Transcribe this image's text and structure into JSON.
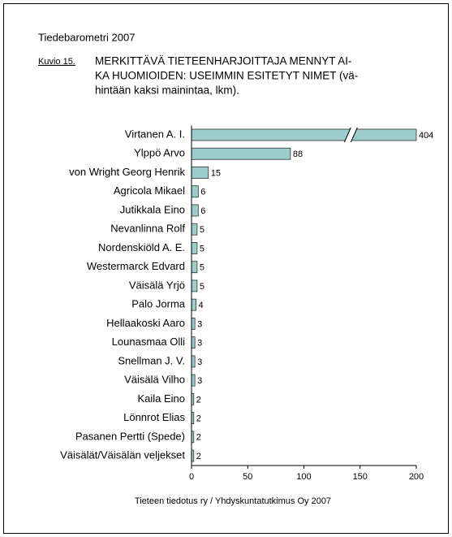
{
  "header": "Tiedebarometri 2007",
  "figure_label": "Kuvio 15.",
  "chart_data": {
    "type": "bar",
    "orientation": "horizontal",
    "title": [
      "MERKITTÄVÄ TIETEENHARJOITTAJA MENNYT AI-",
      "KA HUOMIOIDEN: USEIMMIN ESITETYT NIMET (vä-",
      "hintään kaksi mainintaa, lkm)."
    ],
    "categories": [
      "Virtanen A. I.",
      "Ylppö Arvo",
      "von Wright Georg Henrik",
      "Agricola Mikael",
      "Jutikkala Eino",
      "Nevanlinna Rolf",
      "Nordenskiöld A. E.",
      "Westermarck Edvard",
      "Väisälä Yrjö",
      "Palo Jorma",
      "Hellaakoski Aaro",
      "Lounasmaa Olli",
      "Snellman J. V.",
      "Väisälä Vilho",
      "Kaila Eino",
      "Lönnrot Elias",
      "Pasanen Pertti (Spede)",
      "Väisälät/Väisälän veljekset"
    ],
    "values": [
      404,
      88,
      15,
      6,
      6,
      5,
      5,
      5,
      5,
      4,
      3,
      3,
      3,
      3,
      2,
      2,
      2,
      2
    ],
    "color": "#9ccccc",
    "xlim": [
      0,
      200
    ],
    "xticks": [
      0,
      50,
      100,
      150,
      200
    ],
    "axis_break": true,
    "source": "Tieteen tiedotus ry / Yhdyskuntatutkimus Oy 2007"
  }
}
